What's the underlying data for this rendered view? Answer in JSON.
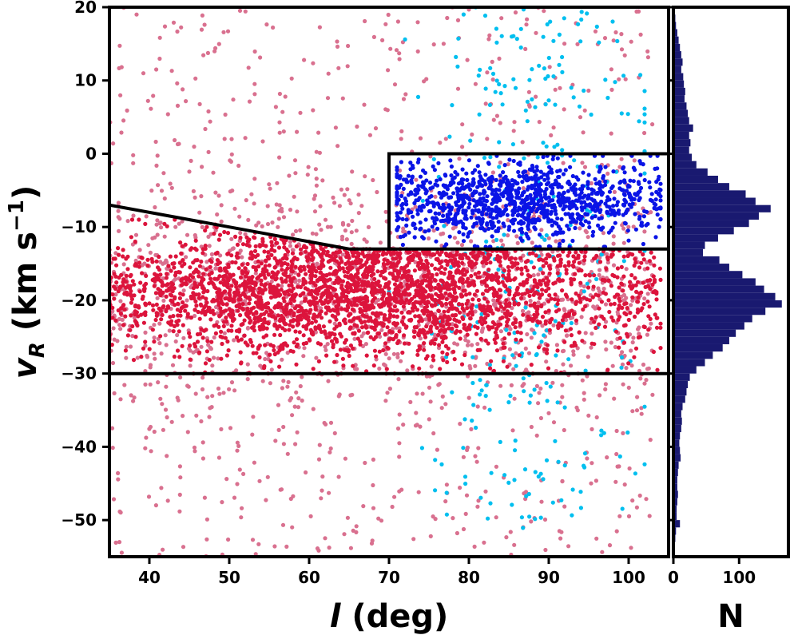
{
  "chart_data": [
    {
      "type": "scatter",
      "panel": "main",
      "xlabel_var": "l",
      "xlabel_unit": " (deg)",
      "ylabel_var": "v",
      "ylabel_sub": "R",
      "ylabel_unit": " (km s",
      "ylabel_sup": "−1",
      "ylabel_close": ")",
      "xlim": [
        35,
        105
      ],
      "ylim": [
        -55,
        20
      ],
      "xticks": [
        40,
        50,
        60,
        70,
        80,
        90,
        100
      ],
      "xtick_labels": [
        "40",
        "50",
        "60",
        "70",
        "80",
        "90",
        "100"
      ],
      "yticks": [
        20,
        10,
        0,
        -10,
        -20,
        -30,
        -40,
        -50
      ],
      "ytick_labels": [
        "20",
        "10",
        "0",
        "−10",
        "−20",
        "−30",
        "−40",
        "−50"
      ],
      "grid": false,
      "series": [
        {
          "color": "#d9708f",
          "distribution": {
            "x_range": [
              35,
              103
            ],
            "y_range": [
              -55,
              20
            ],
            "approx_count": 1700
          }
        },
        {
          "color": "#00bfef",
          "distribution": {
            "x_range": [
              70,
              102
            ],
            "y_range": [
              -52,
              20
            ],
            "approx_count": 300
          }
        },
        {
          "color": "#dc143c",
          "distribution": {
            "x_center": 65,
            "x_range": [
              35,
              104
            ],
            "y_center": -19,
            "y_range": [
              -30,
              -9
            ],
            "approx_count": 2900
          }
        },
        {
          "color": "#0a14e6",
          "distribution": {
            "x_center": 85,
            "x_range": [
              71,
              104
            ],
            "y_center": -6.5,
            "y_range": [
              -13,
              0
            ],
            "approx_count": 1100
          }
        }
      ],
      "selection_lines": [
        {
          "points": [
            [
              35,
              -7
            ],
            [
              65,
              -13
            ],
            [
              105,
              -13
            ]
          ]
        },
        {
          "points": [
            [
              70,
              -13
            ],
            [
              70,
              0
            ],
            [
              105,
              0
            ]
          ]
        },
        {
          "points": [
            [
              35,
              -30
            ],
            [
              105,
              -30
            ]
          ]
        }
      ]
    },
    {
      "type": "bar",
      "orientation": "horizontal",
      "panel": "histogram",
      "xlabel": "N",
      "xlim": [
        0,
        175
      ],
      "ylim": [
        -55,
        20
      ],
      "xticks": [
        0,
        100
      ],
      "xtick_labels": [
        "0",
        "100"
      ],
      "color": "#191970",
      "bin_width": 1,
      "bin_centers": [
        19.5,
        18.5,
        17.5,
        16.5,
        15.5,
        14.5,
        13.5,
        12.5,
        11.5,
        10.5,
        9.5,
        8.5,
        7.5,
        6.5,
        5.5,
        4.5,
        3.5,
        2.5,
        1.5,
        0.5,
        -0.5,
        -1.5,
        -2.5,
        -3.5,
        -4.5,
        -5.5,
        -6.5,
        -7.5,
        -8.5,
        -9.5,
        -10.5,
        -11.5,
        -12.5,
        -13.5,
        -14.5,
        -15.5,
        -16.5,
        -17.5,
        -18.5,
        -19.5,
        -20.5,
        -21.5,
        -22.5,
        -23.5,
        -24.5,
        -25.5,
        -26.5,
        -27.5,
        -28.5,
        -29.5,
        -30.5,
        -31.5,
        -32.5,
        -33.5,
        -34.5,
        -35.5,
        -36.5,
        -37.5,
        -38.5,
        -39.5,
        -40.5,
        -41.5,
        -42.5,
        -43.5,
        -44.5,
        -45.5,
        -46.5,
        -47.5,
        -48.5,
        -49.5,
        -50.5,
        -51.5,
        -52.5,
        -53.5,
        -54.5
      ],
      "counts": [
        2,
        3,
        4,
        6,
        8,
        10,
        12,
        14,
        12,
        15,
        16,
        18,
        17,
        20,
        22,
        24,
        30,
        24,
        26,
        24,
        28,
        35,
        52,
        68,
        85,
        110,
        125,
        148,
        130,
        115,
        92,
        68,
        48,
        45,
        70,
        85,
        105,
        125,
        138,
        155,
        165,
        140,
        120,
        108,
        95,
        85,
        75,
        60,
        48,
        35,
        25,
        22,
        20,
        18,
        14,
        12,
        13,
        12,
        10,
        9,
        10,
        11,
        8,
        7,
        6,
        6,
        7,
        6,
        5,
        5,
        10,
        4,
        3,
        2,
        1
      ]
    }
  ]
}
